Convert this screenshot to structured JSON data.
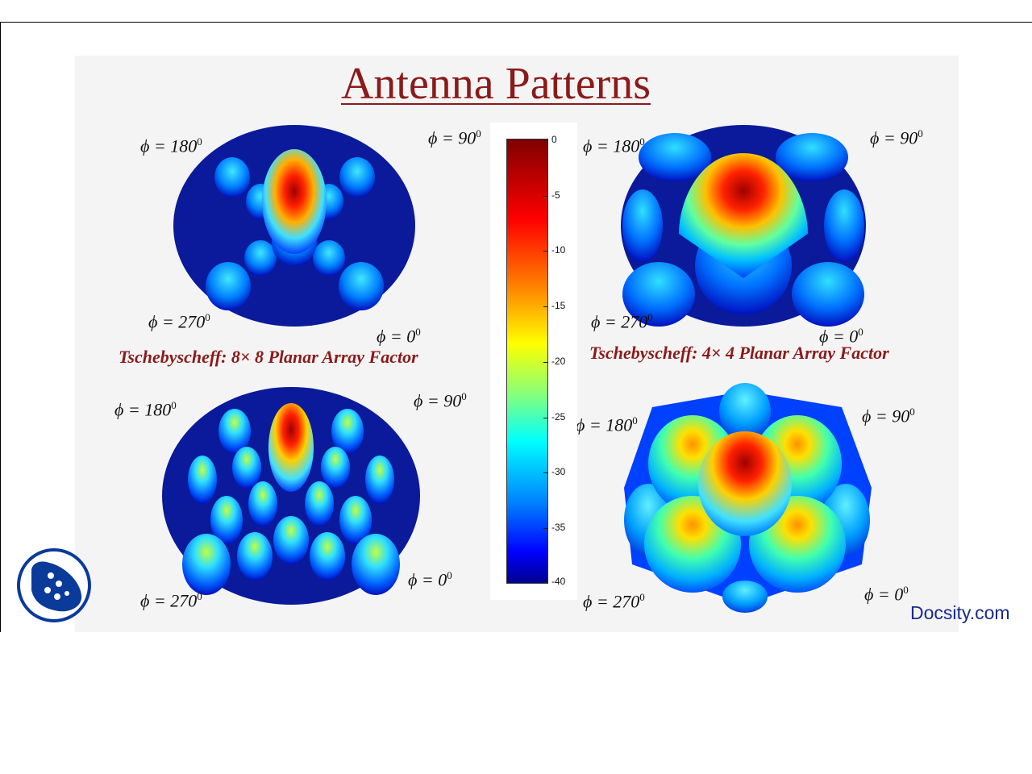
{
  "slide": {
    "title": "Antenna Patterns",
    "watermark": "Docsity.com",
    "plots": [
      {
        "id": "tl",
        "caption": "Tschebyscheff:  8× 8 Planar Array Factor",
        "labels": [
          "ϕ = 180",
          "ϕ = 90",
          "ϕ = 270",
          "ϕ = 0"
        ]
      },
      {
        "id": "tr",
        "caption": "Tschebyscheff:  4× 4 Planar Array Factor",
        "labels": [
          "ϕ = 180",
          "ϕ = 90",
          "ϕ = 270",
          "ϕ = 0"
        ]
      },
      {
        "id": "bl",
        "caption": "",
        "labels": [
          "ϕ = 180",
          "ϕ = 90",
          "ϕ = 270",
          "ϕ = 0"
        ]
      },
      {
        "id": "br",
        "caption": "",
        "labels": [
          "ϕ = 180",
          "ϕ = 90",
          "ϕ = 270",
          "ϕ = 0"
        ]
      }
    ],
    "colorbar": {
      "ticks": [
        "0",
        "-5",
        "-10",
        "-15",
        "-20",
        "-25",
        "-30",
        "-35",
        "-40"
      ],
      "colors": [
        "#800000",
        "#ff0000",
        "#ff8000",
        "#ffff00",
        "#80ff80",
        "#00ffff",
        "#0080ff",
        "#0000ff",
        "#00008f"
      ]
    },
    "degree_mark": "0"
  }
}
